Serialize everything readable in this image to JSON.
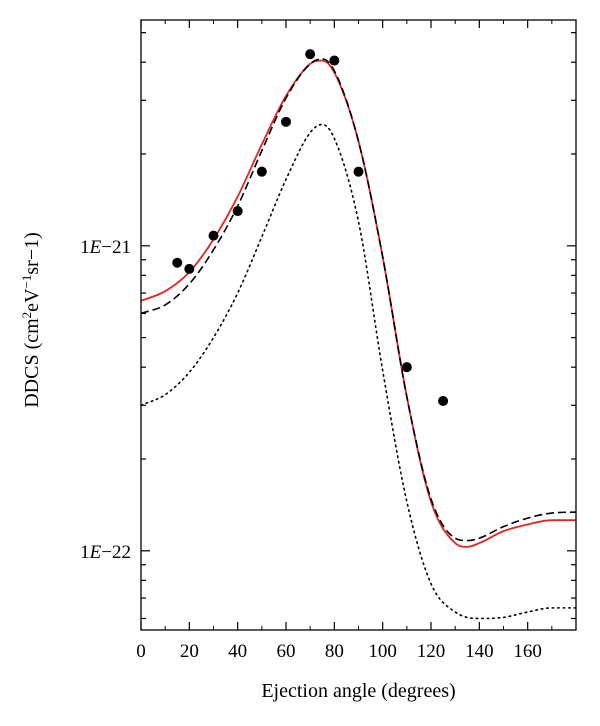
{
  "chart_data": {
    "type": "line",
    "title": "",
    "xlabel": "Ejection angle (degrees)",
    "ylabel": "DDCS (cm²eV⁻¹sr−1)",
    "ylabel_parts": {
      "prefix": "DDCS (cm",
      "sup1": "2",
      "mid1": "eV",
      "sup2": "−1",
      "mid2": "sr",
      "suffix": "−1)"
    },
    "xlim": [
      0,
      180
    ],
    "ylim": [
      5.5e-23,
      5.5e-21
    ],
    "yscale": "log",
    "x_ticks": [
      0,
      20,
      40,
      60,
      80,
      100,
      120,
      140,
      160
    ],
    "x_tick_labels": [
      "0",
      "20",
      "40",
      "60",
      "80",
      "100",
      "120",
      "140",
      "160"
    ],
    "y_ticks": [
      1e-22,
      1e-21
    ],
    "y_tick_labels": [
      {
        "value": 1e-22,
        "mant": "1",
        "exp": "−22"
      },
      {
        "value": 1e-21,
        "mant": "1",
        "exp": "−21"
      }
    ],
    "grid": false,
    "legend": "none",
    "series": [
      {
        "style": "solid",
        "color": "#e8231f",
        "x": [
          0,
          10,
          20,
          30,
          40,
          50,
          60,
          70,
          75,
          80,
          90,
          100,
          110,
          120,
          130,
          135,
          140,
          150,
          160,
          170,
          180
        ],
        "y": [
          6.6e-22,
          7.1e-22,
          8.2e-22,
          1.05e-21,
          1.45e-21,
          2.15e-21,
          3.1e-21,
          3.95e-21,
          4.05e-21,
          3.7e-21,
          2.2e-21,
          9.2e-22,
          3.2e-22,
          1.45e-22,
          1.06e-22,
          1.03e-22,
          1.06e-22,
          1.16e-22,
          1.22e-22,
          1.26e-22,
          1.26e-22
        ]
      },
      {
        "style": "dashed",
        "color": "#000000",
        "x": [
          0,
          10,
          20,
          30,
          40,
          50,
          60,
          70,
          75,
          80,
          90,
          100,
          110,
          120,
          130,
          135,
          140,
          150,
          160,
          170,
          180
        ],
        "y": [
          6e-22,
          6.4e-22,
          7.5e-22,
          9.7e-22,
          1.35e-21,
          2.05e-21,
          3.05e-21,
          3.95e-21,
          4.1e-21,
          3.75e-21,
          2.2e-21,
          9.2e-22,
          3.2e-22,
          1.48e-22,
          1.1e-22,
          1.08e-22,
          1.1e-22,
          1.2e-22,
          1.28e-22,
          1.33e-22,
          1.34e-22
        ]
      },
      {
        "style": "dotted",
        "color": "#000000",
        "x": [
          0,
          10,
          20,
          30,
          40,
          50,
          60,
          70,
          75,
          80,
          90,
          100,
          110,
          120,
          130,
          140,
          150,
          160,
          170,
          180
        ],
        "y": [
          3e-22,
          3.25e-22,
          3.85e-22,
          5e-22,
          7e-22,
          1.07e-21,
          1.65e-21,
          2.35e-21,
          2.5e-21,
          2.25e-21,
          1.2e-21,
          3.9e-22,
          1.45e-22,
          7.8e-23,
          6.3e-23,
          6e-23,
          6.05e-23,
          6.3e-23,
          6.5e-23,
          6.5e-23
        ]
      },
      {
        "style": "markers",
        "color": "#000000",
        "x": [
          15,
          20,
          30,
          40,
          50,
          60,
          70,
          80,
          90,
          110,
          125
        ],
        "y": [
          8.8e-22,
          8.4e-22,
          1.08e-21,
          1.3e-21,
          1.75e-21,
          2.55e-21,
          4.25e-21,
          4.05e-21,
          1.75e-21,
          4e-22,
          3.1e-22
        ]
      }
    ]
  }
}
